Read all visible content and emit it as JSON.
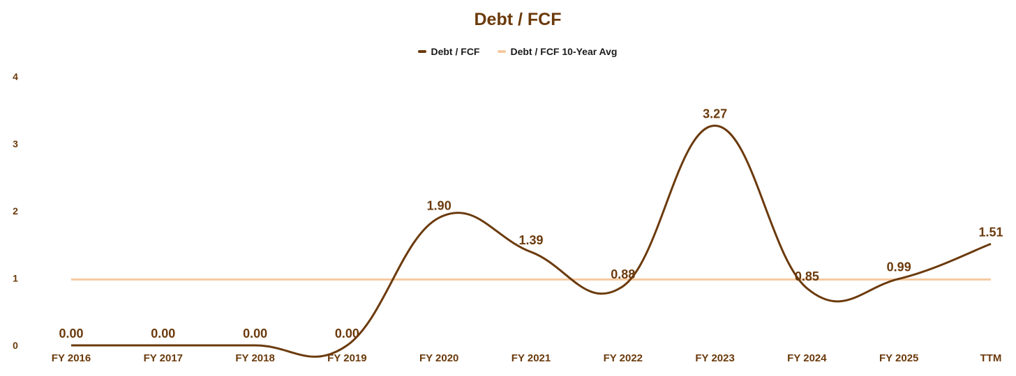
{
  "chart_data": {
    "type": "line",
    "title": "Debt / FCF",
    "xlabel": "",
    "ylabel": "",
    "ylim": [
      0,
      4
    ],
    "yticks": [
      0,
      1,
      2,
      3,
      4
    ],
    "grid": false,
    "legend_position": "top",
    "categories": [
      "FY 2016",
      "FY 2017",
      "FY 2018",
      "FY 2019",
      "FY 2020",
      "FY 2021",
      "FY 2022",
      "FY 2023",
      "FY 2024",
      "FY 2025",
      "TTM"
    ],
    "series": [
      {
        "name": "Debt / FCF",
        "color": "#6b3a0c",
        "values": [
          0.0,
          0.0,
          0.0,
          0.0,
          1.9,
          1.39,
          0.88,
          3.27,
          0.85,
          0.99,
          1.51
        ],
        "data_labels": [
          "0.00",
          "0.00",
          "0.00",
          "0.00",
          "1.90",
          "1.39",
          "0.88",
          "3.27",
          "0.85",
          "0.99",
          "1.51"
        ]
      },
      {
        "name": "Debt / FCF 10-Year Avg",
        "color": "#f5c9a0",
        "values": [
          0.98,
          0.98,
          0.98,
          0.98,
          0.98,
          0.98,
          0.98,
          0.98,
          0.98,
          0.98,
          0.98
        ]
      }
    ]
  }
}
